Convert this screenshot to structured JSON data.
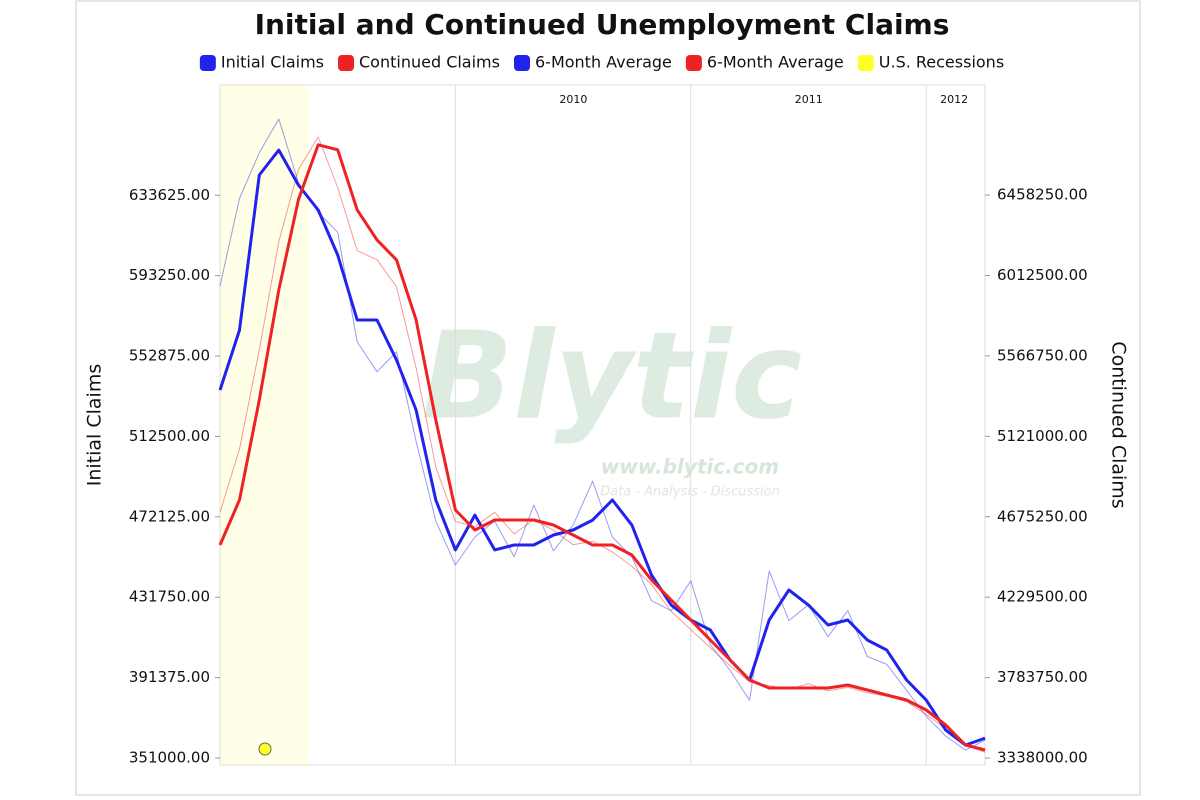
{
  "chart_data": {
    "type": "line",
    "title": "Initial and Continued Unemployment Claims",
    "y_label": "Initial Claims",
    "y2_label": "Continued Claims",
    "watermark": {
      "title": "Blytic",
      "url": "www.blytic.com",
      "tagline": "Data - Analysis - Discussion"
    },
    "x": [
      2009,
      2009.083,
      2009.167,
      2009.25,
      2009.333,
      2009.417,
      2009.5,
      2009.583,
      2009.667,
      2009.75,
      2009.833,
      2009.917,
      2010,
      2010.083,
      2010.167,
      2010.25,
      2010.333,
      2010.417,
      2010.5,
      2010.583,
      2010.667,
      2010.75,
      2010.833,
      2010.917,
      2011,
      2011.083,
      2011.167,
      2011.25,
      2011.333,
      2011.417,
      2011.5,
      2011.583,
      2011.667,
      2011.75,
      2011.833,
      2011.917,
      2012,
      2012.083,
      2012.167,
      2012.25
    ],
    "xlim": [
      2009,
      2012.25
    ],
    "xticks": [
      2010,
      2011,
      2012
    ],
    "ylim": [
      347500,
      689000
    ],
    "yticks": [
      {
        "value": 351000,
        "label": "351000.00"
      },
      {
        "value": 391375,
        "label": "391375.00"
      },
      {
        "value": 431750,
        "label": "431750.00"
      },
      {
        "value": 472125,
        "label": "472125.00"
      },
      {
        "value": 512500,
        "label": "512500.00"
      },
      {
        "value": 552875,
        "label": "552875.00"
      },
      {
        "value": 593250,
        "label": "593250.00"
      },
      {
        "value": 633625,
        "label": "633625.00"
      }
    ],
    "y2lim": [
      3299400,
      7068100
    ],
    "y2ticks": [
      {
        "value": 3338000,
        "label": "3338000.00"
      },
      {
        "value": 3783750,
        "label": "3783750.00"
      },
      {
        "value": 4229500,
        "label": "4229500.00"
      },
      {
        "value": 4675250,
        "label": "4675250.00"
      },
      {
        "value": 5121000,
        "label": "5121000.00"
      },
      {
        "value": 5566750,
        "label": "5566750.00"
      },
      {
        "value": 6012500,
        "label": "6012500.00"
      },
      {
        "value": 6458250,
        "label": "6458250.00"
      }
    ],
    "grid": true,
    "recession": {
      "name": "U.S. Recessions",
      "color": "#ffff22",
      "start": 2009,
      "end": 2009.38
    },
    "series": [
      {
        "name": "Initial Claims",
        "color": "#2222ee",
        "line_width": 1,
        "values": [
          588000,
          632000,
          655000,
          672000,
          640000,
          625000,
          615000,
          560000,
          545000,
          555000,
          510000,
          470000,
          448000,
          462000,
          470000,
          452000,
          478000,
          455000,
          468000,
          490000,
          462000,
          452000,
          430000,
          425000,
          440000,
          408000,
          395000,
          380000,
          445000,
          420000,
          428000,
          412000,
          425000,
          402000,
          398000,
          385000,
          372000,
          362000,
          355000,
          360000
        ]
      },
      {
        "name": "Continued Claims",
        "color": "#ee2222",
        "line_width": 1,
        "axis": "y2",
        "values": [
          4700000,
          5050000,
          5600000,
          6200000,
          6600000,
          6780000,
          6500000,
          6150000,
          6100000,
          5950000,
          5500000,
          4950000,
          4650000,
          4620000,
          4700000,
          4580000,
          4660000,
          4600000,
          4520000,
          4540000,
          4480000,
          4400000,
          4300000,
          4150000,
          4050000,
          3950000,
          3850000,
          3760000,
          3740000,
          3720000,
          3750000,
          3710000,
          3730000,
          3700000,
          3680000,
          3650000,
          3580000,
          3500000,
          3410000,
          3370000
        ]
      },
      {
        "name": "6-Month Average",
        "color": "#2222ee",
        "line_width": 3,
        "values": [
          535800,
          565900,
          643800,
          656300,
          638800,
          626200,
          603600,
          571000,
          571000,
          550900,
          525800,
          480600,
          455500,
          473000,
          455500,
          458000,
          458000,
          463000,
          465500,
          470500,
          480600,
          468000,
          442900,
          427800,
          420300,
          415300,
          400200,
          390200,
          420300,
          435400,
          427800,
          417800,
          420300,
          410300,
          405200,
          390200,
          380100,
          365100,
          357500,
          361000
        ]
      },
      {
        "name": "6-Month Average",
        "color": "#ee2222",
        "line_width": 3,
        "axis": "y2",
        "values": [
          4518900,
          4768400,
          5322800,
          5932600,
          6431600,
          6736500,
          6708800,
          6376100,
          6209800,
          6098900,
          5766300,
          5211900,
          4712900,
          4602000,
          4657500,
          4657500,
          4657500,
          4629800,
          4574300,
          4518900,
          4518900,
          4463400,
          4324800,
          4214000,
          4103100,
          3992200,
          3881300,
          3770400,
          3726100,
          3726100,
          3726100,
          3726100,
          3742700,
          3715000,
          3687300,
          3659600,
          3604100,
          3521000,
          3410100,
          3382400
        ]
      }
    ]
  }
}
